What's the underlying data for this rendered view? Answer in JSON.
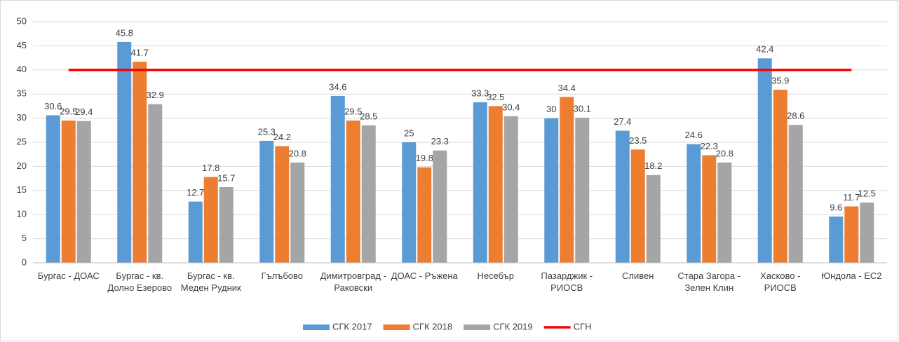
{
  "chart_data": {
    "type": "bar",
    "categories": [
      "Бургас - ДОАС",
      "Бургас - кв. Долно Езерово",
      "Бургас - кв. Меден Рудник",
      "Гълъбово",
      "Димитровград - Раковски",
      "ДОАС - Ръжена",
      "Несебър",
      "Пазарджик - РИОСВ",
      "Сливен",
      "Стара Загора - Зелен Клин",
      "Хасково - РИОСВ",
      "Юндола - EC2"
    ],
    "series": [
      {
        "name": "СГК 2017",
        "color": "#5b9bd5",
        "values": [
          30.6,
          45.8,
          12.7,
          25.3,
          34.6,
          25,
          33.3,
          30,
          27.4,
          24.6,
          42.4,
          9.6
        ]
      },
      {
        "name": "СГК 2018",
        "color": "#ed7d31",
        "values": [
          29.5,
          41.7,
          17.8,
          24.2,
          29.5,
          19.8,
          32.5,
          34.4,
          23.5,
          22.3,
          35.9,
          11.7
        ]
      },
      {
        "name": "СГК 2019",
        "color": "#a5a5a5",
        "values": [
          29.4,
          32.9,
          15.7,
          20.8,
          28.5,
          23.3,
          30.4,
          30.1,
          18.2,
          20.8,
          28.6,
          12.5
        ]
      }
    ],
    "limit": {
      "name": "СГН",
      "color": "#ff0000",
      "value": 40
    },
    "ylim": [
      0,
      50
    ],
    "yticks": [
      0,
      5,
      10,
      15,
      20,
      25,
      30,
      35,
      40,
      45,
      50
    ],
    "grid": true
  }
}
